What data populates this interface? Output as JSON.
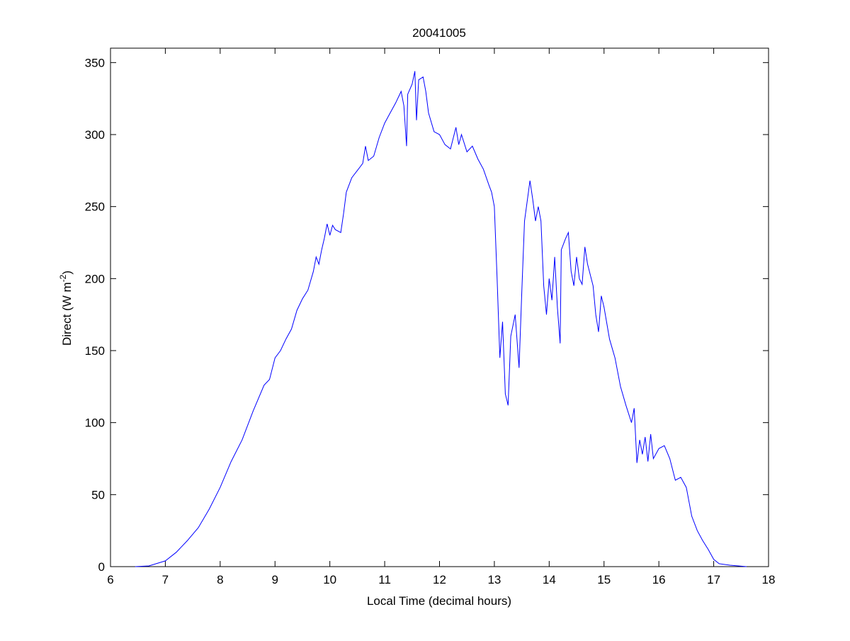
{
  "chart_data": {
    "type": "line",
    "title": "20041005",
    "xlabel": "Local Time (decimal hours)",
    "ylabel_main": "Direct (W m",
    "ylabel_sup": "-2",
    "ylabel_close": ")",
    "xlim": [
      6,
      18
    ],
    "ylim": [
      0,
      360
    ],
    "xticks": [
      6,
      7,
      8,
      9,
      10,
      11,
      12,
      13,
      14,
      15,
      16,
      17,
      18
    ],
    "yticks": [
      0,
      50,
      100,
      150,
      200,
      250,
      300,
      350
    ],
    "grid": false,
    "line_color": "#0000ff",
    "series": [
      {
        "x": [
          6.45,
          6.7,
          7.0,
          7.2,
          7.4,
          7.6,
          7.8,
          8.0,
          8.2,
          8.4,
          8.6,
          8.8,
          8.9,
          9.0,
          9.1,
          9.2,
          9.3,
          9.4,
          9.5,
          9.6,
          9.7,
          9.75,
          9.8,
          9.85,
          9.9,
          9.95,
          10.0,
          10.05,
          10.1,
          10.2,
          10.25,
          10.3,
          10.4,
          10.5,
          10.6,
          10.65,
          10.7,
          10.8,
          10.9,
          11.0,
          11.1,
          11.2,
          11.3,
          11.35,
          11.4,
          11.42,
          11.5,
          11.55,
          11.58,
          11.62,
          11.7,
          11.75,
          11.8,
          11.9,
          12.0,
          12.1,
          12.2,
          12.3,
          12.35,
          12.4,
          12.5,
          12.6,
          12.7,
          12.8,
          12.9,
          12.95,
          13.0,
          13.05,
          13.1,
          13.15,
          13.2,
          13.25,
          13.3,
          13.38,
          13.45,
          13.5,
          13.55,
          13.65,
          13.7,
          13.75,
          13.8,
          13.85,
          13.9,
          13.95,
          14.0,
          14.05,
          14.1,
          14.15,
          14.2,
          14.22,
          14.3,
          14.35,
          14.4,
          14.45,
          14.5,
          14.55,
          14.6,
          14.65,
          14.7,
          14.8,
          14.85,
          14.9,
          14.95,
          15.0,
          15.1,
          15.2,
          15.3,
          15.4,
          15.5,
          15.55,
          15.6,
          15.65,
          15.7,
          15.75,
          15.8,
          15.85,
          15.9,
          16.0,
          16.1,
          16.2,
          16.3,
          16.4,
          16.5,
          16.6,
          16.7,
          16.8,
          16.9,
          17.0,
          17.1,
          17.3,
          17.6
        ],
        "y": [
          0,
          0.5,
          4,
          10,
          18,
          27,
          40,
          55,
          73,
          88,
          108,
          126,
          130,
          145,
          150,
          158,
          165,
          178,
          186,
          192,
          205,
          215,
          210,
          220,
          228,
          238,
          230,
          237,
          234,
          232,
          245,
          260,
          270,
          275,
          280,
          292,
          282,
          285,
          298,
          308,
          315,
          322,
          330,
          320,
          292,
          328,
          335,
          344,
          310,
          338,
          340,
          330,
          315,
          302,
          300,
          293,
          290,
          305,
          293,
          300,
          288,
          292,
          283,
          276,
          265,
          260,
          250,
          200,
          145,
          170,
          120,
          112,
          160,
          175,
          138,
          190,
          240,
          268,
          255,
          240,
          250,
          240,
          195,
          175,
          200,
          185,
          215,
          180,
          155,
          220,
          228,
          232,
          205,
          195,
          215,
          200,
          196,
          222,
          210,
          195,
          175,
          163,
          188,
          180,
          158,
          145,
          125,
          112,
          100,
          110,
          72,
          88,
          78,
          90,
          73,
          92,
          75,
          82,
          84,
          75,
          60,
          62,
          55,
          35,
          25,
          18,
          12,
          5,
          2,
          1,
          0
        ]
      }
    ]
  }
}
